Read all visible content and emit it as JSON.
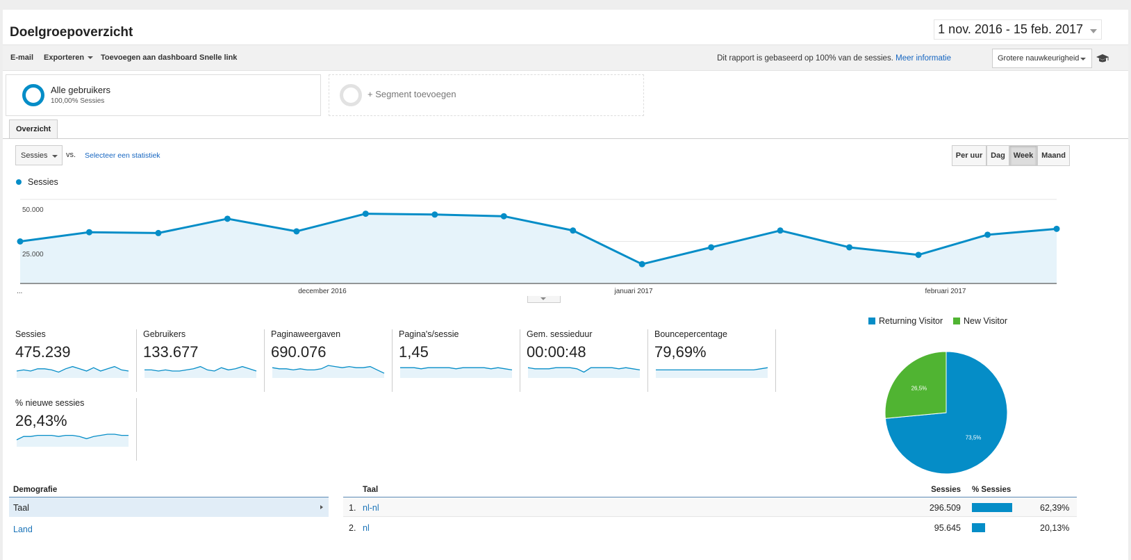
{
  "header": {
    "title": "Doelgroepoverzicht",
    "date_range": "1 nov. 2016 - 15 feb. 2017"
  },
  "toolbar": {
    "email": "E-mail",
    "export": "Exporteren",
    "add_dashboard": "Toevoegen aan dashboard",
    "quick_link": "Snelle link",
    "note": "Dit rapport is gebaseerd op 100% van de sessies.",
    "more_info": "Meer informatie",
    "accuracy": "Grotere nauwkeurigheid"
  },
  "segments": {
    "all_users": {
      "name": "Alle gebruikers",
      "sub": "100,00% Sessies"
    },
    "add_segment": "+ Segment toevoegen"
  },
  "tabs": {
    "overview": "Overzicht"
  },
  "controls": {
    "metric": "Sessies",
    "vs": "vs.",
    "select_stat": "Selecteer een statistiek",
    "granularity": [
      "Per uur",
      "Dag",
      "Week",
      "Maand"
    ],
    "active_granularity": "Week"
  },
  "chart_data": {
    "type": "area",
    "legend": "Sessies",
    "color": "#058dc7",
    "yticks": [
      "50.000",
      "25.000"
    ],
    "ylim": [
      0,
      50000
    ],
    "xlabels": [
      "...",
      "december 2016",
      "januari 2017",
      "februari 2017"
    ],
    "values": [
      25000,
      30500,
      30000,
      38500,
      31000,
      41500,
      41000,
      40000,
      31500,
      11500,
      21500,
      31500,
      21500,
      17000,
      29000,
      32500
    ]
  },
  "metrics": [
    {
      "label": "Sessies",
      "value": "475.239",
      "spark": [
        5,
        6,
        5,
        7,
        7,
        6,
        4,
        7,
        9,
        7,
        5,
        8,
        5,
        7,
        9,
        6,
        5
      ]
    },
    {
      "label": "Gebruikers",
      "value": "133.677",
      "spark": [
        6,
        6,
        5,
        6,
        5,
        5,
        6,
        7,
        9,
        6,
        5,
        8,
        6,
        7,
        9,
        7,
        5
      ]
    },
    {
      "label": "Paginaweergaven",
      "value": "690.076",
      "spark": [
        8,
        7,
        7,
        6,
        7,
        6,
        6,
        7,
        10,
        9,
        8,
        9,
        8,
        8,
        9,
        6,
        3
      ]
    },
    {
      "label": "Pagina's/sessie",
      "value": "1,45",
      "spark": [
        8,
        8,
        8,
        7,
        8,
        8,
        8,
        8,
        7,
        8,
        8,
        8,
        8,
        7,
        8,
        7,
        6
      ]
    },
    {
      "label": "Gem. sessieduur",
      "value": "00:00:48",
      "spark": [
        8,
        7,
        7,
        7,
        8,
        8,
        8,
        7,
        4,
        8,
        8,
        8,
        8,
        7,
        8,
        7,
        6
      ]
    },
    {
      "label": "Bouncepercentage",
      "value": "79,69%",
      "spark": [
        6,
        6,
        6,
        6,
        6,
        6,
        6,
        6,
        6,
        6,
        6,
        6,
        6,
        6,
        6,
        7,
        8
      ]
    },
    {
      "label": "% nieuwe sessies",
      "value": "26,43%",
      "spark": [
        5,
        8,
        8,
        9,
        9,
        9,
        8,
        9,
        9,
        8,
        6,
        8,
        9,
        10,
        10,
        9,
        9
      ]
    }
  ],
  "pie": {
    "legend": [
      {
        "name": "Returning Visitor",
        "color": "#058dc7"
      },
      {
        "name": "New Visitor",
        "color": "#50b432"
      }
    ],
    "slices": [
      {
        "label": "73,5%",
        "value": 73.5,
        "color": "#058dc7"
      },
      {
        "label": "26,5%",
        "value": 26.5,
        "color": "#50b432"
      }
    ]
  },
  "demographics": {
    "heading": "Demografie",
    "items": [
      "Taal",
      "Land"
    ]
  },
  "table": {
    "headers": {
      "col1": "Taal",
      "col2": "Sessies",
      "col3": "% Sessies"
    },
    "rows": [
      {
        "idx": "1.",
        "lang": "nl-nl",
        "sessions": "296.509",
        "pct": "62,39%",
        "share": 0.6239
      },
      {
        "idx": "2.",
        "lang": "nl",
        "sessions": "95.645",
        "pct": "20,13%",
        "share": 0.2013
      }
    ]
  }
}
